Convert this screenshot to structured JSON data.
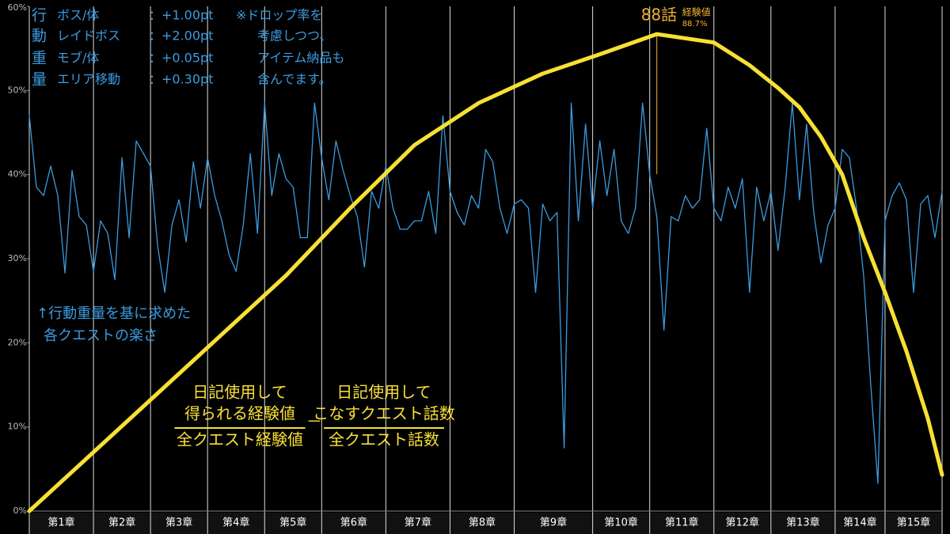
{
  "chart_data": {
    "type": "line",
    "ylim": [
      0,
      60
    ],
    "yticks": [
      {
        "value": 0,
        "label": "0%"
      },
      {
        "value": 10,
        "label": "10%"
      },
      {
        "value": 20,
        "label": "20%"
      },
      {
        "value": 30,
        "label": "30%"
      },
      {
        "value": 40,
        "label": "40%"
      },
      {
        "value": 50,
        "label": "50%"
      },
      {
        "value": 60,
        "label": "60%"
      }
    ],
    "xlim": [
      0,
      128
    ],
    "categories": [
      "第1章",
      "第2章",
      "第3章",
      "第4章",
      "第5章",
      "第6章",
      "第7章",
      "第8章",
      "第9章",
      "第10章",
      "第11章",
      "第12章",
      "第13章",
      "第14章",
      "第15章"
    ],
    "chapter_bounds": [
      0,
      9,
      17,
      25,
      33,
      41,
      50,
      59,
      68,
      79,
      87,
      96,
      104,
      113,
      120,
      128
    ],
    "series": [
      {
        "color": "#3b9be0",
        "x": [
          0,
          1,
          2,
          3,
          4,
          5,
          6,
          7,
          8,
          9,
          10,
          11,
          12,
          13,
          14,
          15,
          16,
          17,
          18,
          19,
          20,
          21,
          22,
          23,
          24,
          25,
          26,
          27,
          28,
          29,
          30,
          31,
          32,
          33,
          34,
          35,
          36,
          37,
          38,
          39,
          40,
          41,
          42,
          43,
          44,
          45,
          46,
          47,
          48,
          49,
          50,
          51,
          52,
          53,
          54,
          55,
          56,
          57,
          58,
          59,
          60,
          61,
          62,
          63,
          64,
          65,
          66,
          67,
          68,
          69,
          70,
          71,
          72,
          73,
          74,
          75,
          76,
          77,
          78,
          79,
          80,
          81,
          82,
          83,
          84,
          85,
          86,
          87,
          88,
          89,
          90,
          91,
          92,
          93,
          94,
          95,
          96,
          97,
          98,
          99,
          100,
          101,
          102,
          103,
          104,
          105,
          106,
          107,
          108,
          109,
          110,
          111,
          112,
          113,
          114,
          115,
          116,
          117,
          118,
          119,
          120,
          121,
          122,
          123,
          124,
          125,
          126,
          127,
          128
        ],
        "values": [
          47,
          38.5,
          37.5,
          41,
          37.5,
          28.3,
          40.5,
          35,
          34,
          28.5,
          34.5,
          33,
          27.5,
          42,
          32.5,
          44,
          42.5,
          41,
          31.5,
          26,
          34,
          37,
          32,
          41.5,
          36,
          42,
          37.5,
          34.5,
          30.5,
          28.5,
          34,
          42.5,
          33,
          48.5,
          37.5,
          42.5,
          39.5,
          38.5,
          32.5,
          32.5,
          48.5,
          42,
          37,
          44,
          40.5,
          37.5,
          35,
          29,
          38,
          36,
          41,
          36,
          33.5,
          33.5,
          34.5,
          34.5,
          38,
          33,
          47,
          38,
          35.5,
          34,
          37.5,
          36,
          43,
          41.5,
          36,
          33,
          36.5,
          37,
          36,
          26,
          36.5,
          34.5,
          35.5,
          7.5,
          48.5,
          34.5,
          46,
          36,
          44,
          37.5,
          43,
          34.5,
          33,
          36,
          48.5,
          40,
          35,
          21.5,
          35,
          34.5,
          37.5,
          36,
          37,
          45.5,
          36,
          34.5,
          38.5,
          36,
          39.5,
          26,
          38.5,
          34.5,
          38,
          31,
          38.5,
          48.5,
          37,
          46,
          35.5,
          29.5,
          34,
          36,
          43,
          42,
          36,
          28,
          15,
          3.3,
          34.5,
          37.5,
          39,
          37,
          26,
          36.5,
          37.5,
          32.5,
          38
        ]
      },
      {
        "color": "#f7e034",
        "x": [
          0,
          9,
          18,
          27,
          36,
          45,
          54,
          63,
          72,
          80,
          88,
          96,
          101,
          105,
          108,
          111,
          114,
          117,
          120,
          123,
          126,
          128
        ],
        "values": [
          0,
          7,
          14,
          21,
          28,
          36,
          43.5,
          48.5,
          52,
          54.3,
          56.7,
          55.7,
          53,
          50.3,
          48,
          44.5,
          40,
          32.5,
          26,
          19,
          11,
          4.3
        ]
      }
    ],
    "peak": {
      "x": 88,
      "label": "88話",
      "sub": "経験値",
      "sub_value": "88.7%"
    },
    "weights": [
      [
        "行",
        "ボス/体",
        "：+1.00pt"
      ],
      [
        "動",
        "レイドボス",
        "：+2.00pt"
      ],
      [
        "重",
        "モブ/体",
        "：+0.05pt"
      ],
      [
        "量",
        "エリア移動",
        "：+0.30pt"
      ]
    ],
    "note": [
      "※ドロップ率を",
      "考慮しつつ、",
      "アイテム納品も",
      "含んでます。"
    ],
    "blue_note": [
      "↑行動重量を基に求めた",
      "各クエストの楽さ"
    ],
    "formula": {
      "left_numerator": [
        "日記使用して",
        "得られる経験値"
      ],
      "left_denominator": "全クエスト経験値",
      "operator": "－",
      "right_numerator": [
        "日記使用して",
        "こなすクエスト話数"
      ],
      "right_denominator": "全クエスト話数"
    }
  }
}
